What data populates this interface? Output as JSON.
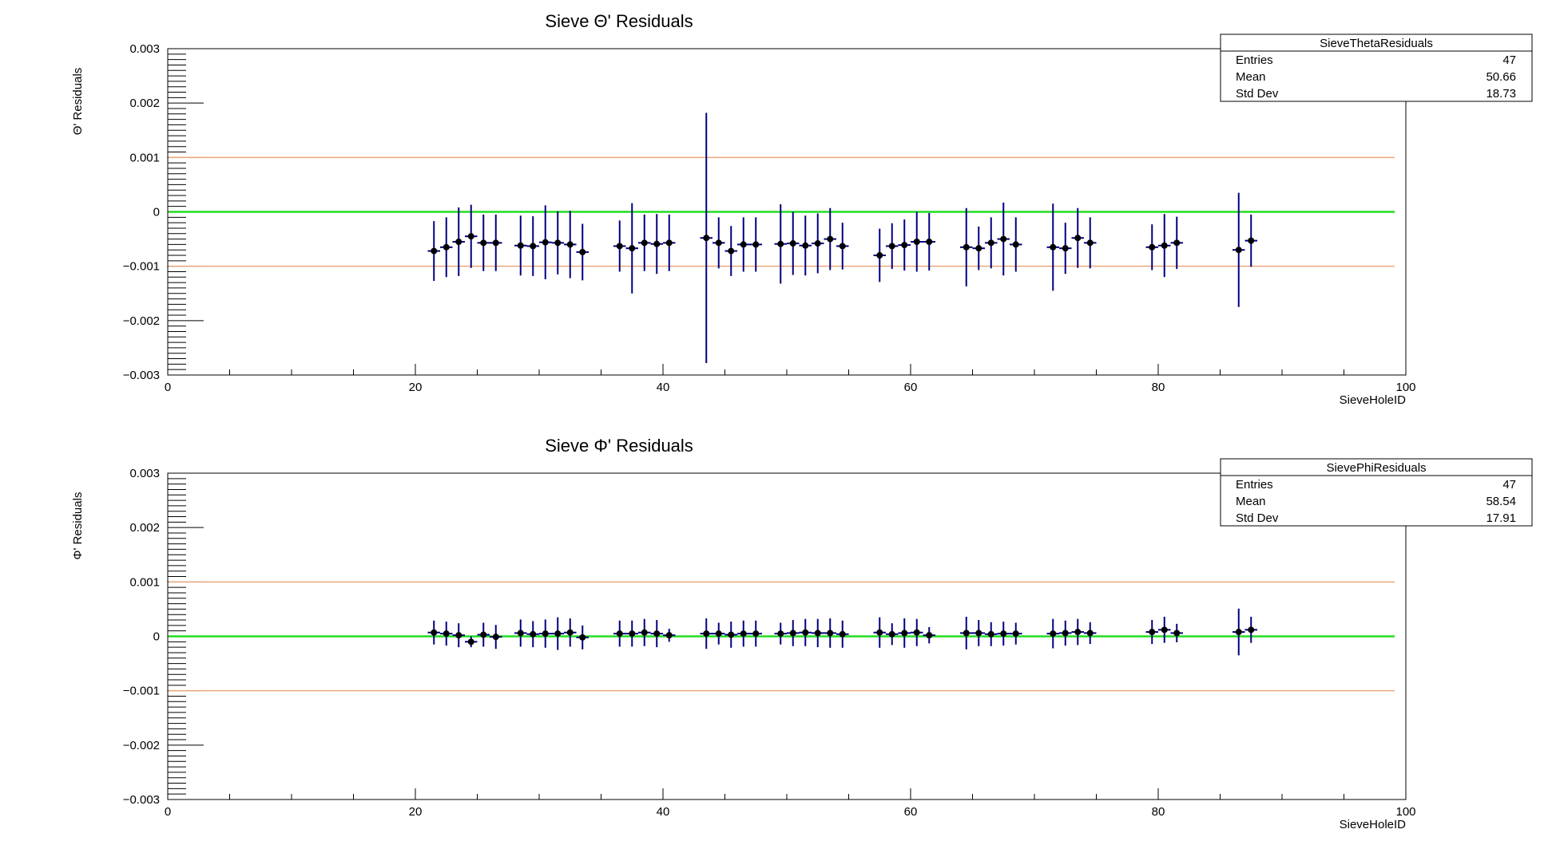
{
  "chart_data": [
    {
      "type": "scatter",
      "title": "Sieve Θ' Residuals",
      "xlabel": "SieveHoleID",
      "ylabel": "Θ' Residuals",
      "xlim": [
        0,
        100
      ],
      "ylim": [
        -0.003,
        0.003
      ],
      "x_tick_labels": [
        "0",
        "20",
        "40",
        "60",
        "80",
        "100"
      ],
      "y_tick_labels": [
        "−0.003",
        "−0.002",
        "−0.001",
        "0",
        "0.001",
        "0.002",
        "0.003"
      ],
      "reference_lines": [
        {
          "y": 0.001,
          "color": "#e8a87c"
        },
        {
          "y": 0,
          "color": "#22dd22"
        },
        {
          "y": -0.001,
          "color": "#e8a87c"
        }
      ],
      "marker_color": "#000000",
      "error_color": "#000080",
      "stats": {
        "name": "SieveThetaResiduals",
        "rows": [
          {
            "label": "Entries",
            "value": "47"
          },
          {
            "label": "Mean",
            "value": "50.66"
          },
          {
            "label": "Std Dev",
            "value": "18.73"
          }
        ]
      },
      "points": [
        {
          "x": 21.5,
          "y": -0.00072,
          "err": 0.00055
        },
        {
          "x": 22.5,
          "y": -0.00065,
          "err": 0.00055
        },
        {
          "x": 23.5,
          "y": -0.00055,
          "err": 0.00063
        },
        {
          "x": 24.5,
          "y": -0.00045,
          "err": 0.00058
        },
        {
          "x": 25.5,
          "y": -0.00057,
          "err": 0.00052
        },
        {
          "x": 26.5,
          "y": -0.00057,
          "err": 0.00052
        },
        {
          "x": 28.5,
          "y": -0.00062,
          "err": 0.00055
        },
        {
          "x": 29.5,
          "y": -0.00063,
          "err": 0.00055
        },
        {
          "x": 30.5,
          "y": -0.00056,
          "err": 0.00068
        },
        {
          "x": 31.5,
          "y": -0.00057,
          "err": 0.00058
        },
        {
          "x": 32.5,
          "y": -0.0006,
          "err": 0.00062
        },
        {
          "x": 33.5,
          "y": -0.00074,
          "err": 0.00052
        },
        {
          "x": 36.5,
          "y": -0.00063,
          "err": 0.00047
        },
        {
          "x": 37.5,
          "y": -0.00067,
          "err": 0.00083
        },
        {
          "x": 38.5,
          "y": -0.00057,
          "err": 0.00052
        },
        {
          "x": 39.5,
          "y": -0.00059,
          "err": 0.00055
        },
        {
          "x": 40.5,
          "y": -0.00057,
          "err": 0.00052
        },
        {
          "x": 43.5,
          "y": -0.00048,
          "err": 0.0023
        },
        {
          "x": 44.5,
          "y": -0.00057,
          "err": 0.00047
        },
        {
          "x": 45.5,
          "y": -0.00072,
          "err": 0.00046
        },
        {
          "x": 46.5,
          "y": -0.0006,
          "err": 0.0005
        },
        {
          "x": 47.5,
          "y": -0.0006,
          "err": 0.0005
        },
        {
          "x": 49.5,
          "y": -0.00059,
          "err": 0.00073
        },
        {
          "x": 50.5,
          "y": -0.00058,
          "err": 0.00058
        },
        {
          "x": 51.5,
          "y": -0.00062,
          "err": 0.00055
        },
        {
          "x": 52.5,
          "y": -0.00058,
          "err": 0.00055
        },
        {
          "x": 53.5,
          "y": -0.0005,
          "err": 0.00057
        },
        {
          "x": 54.5,
          "y": -0.00063,
          "err": 0.00043
        },
        {
          "x": 57.5,
          "y": -0.0008,
          "err": 0.00049
        },
        {
          "x": 58.5,
          "y": -0.00063,
          "err": 0.00042
        },
        {
          "x": 59.5,
          "y": -0.00061,
          "err": 0.00047
        },
        {
          "x": 60.5,
          "y": -0.00055,
          "err": 0.00055
        },
        {
          "x": 61.5,
          "y": -0.00055,
          "err": 0.00053
        },
        {
          "x": 64.5,
          "y": -0.00065,
          "err": 0.00072
        },
        {
          "x": 65.5,
          "y": -0.00067,
          "err": 0.0004
        },
        {
          "x": 66.5,
          "y": -0.00057,
          "err": 0.00047
        },
        {
          "x": 67.5,
          "y": -0.0005,
          "err": 0.00067
        },
        {
          "x": 68.5,
          "y": -0.0006,
          "err": 0.0005
        },
        {
          "x": 71.5,
          "y": -0.00065,
          "err": 0.0008
        },
        {
          "x": 72.5,
          "y": -0.00067,
          "err": 0.00047
        },
        {
          "x": 73.5,
          "y": -0.00048,
          "err": 0.00055
        },
        {
          "x": 74.5,
          "y": -0.00057,
          "err": 0.00047
        },
        {
          "x": 79.5,
          "y": -0.00065,
          "err": 0.00042
        },
        {
          "x": 80.5,
          "y": -0.00062,
          "err": 0.00058
        },
        {
          "x": 81.5,
          "y": -0.00057,
          "err": 0.00048
        },
        {
          "x": 86.5,
          "y": -0.0007,
          "err": 0.00105
        },
        {
          "x": 87.5,
          "y": -0.00053,
          "err": 0.00048
        }
      ]
    },
    {
      "type": "scatter",
      "title": "Sieve Φ' Residuals",
      "xlabel": "SieveHoleID",
      "ylabel": "Φ' Residuals",
      "xlim": [
        0,
        100
      ],
      "ylim": [
        -0.003,
        0.003
      ],
      "x_tick_labels": [
        "0",
        "20",
        "40",
        "60",
        "80",
        "100"
      ],
      "y_tick_labels": [
        "−0.003",
        "−0.002",
        "−0.001",
        "0",
        "0.001",
        "0.002",
        "0.003"
      ],
      "reference_lines": [
        {
          "y": 0.001,
          "color": "#e8a87c"
        },
        {
          "y": 0,
          "color": "#22dd22"
        },
        {
          "y": -0.001,
          "color": "#e8a87c"
        }
      ],
      "marker_color": "#000000",
      "error_color": "#000080",
      "stats": {
        "name": "SievePhiResiduals",
        "rows": [
          {
            "label": "Entries",
            "value": "47"
          },
          {
            "label": "Mean",
            "value": "58.54"
          },
          {
            "label": "Std Dev",
            "value": "17.91"
          }
        ]
      },
      "points": [
        {
          "x": 21.5,
          "y": 7e-05,
          "err": 0.00022
        },
        {
          "x": 22.5,
          "y": 5e-05,
          "err": 0.00022
        },
        {
          "x": 23.5,
          "y": 2e-05,
          "err": 0.00022
        },
        {
          "x": 24.5,
          "y": -0.0001,
          "err": 0.0001
        },
        {
          "x": 25.5,
          "y": 3e-05,
          "err": 0.00022
        },
        {
          "x": 26.5,
          "y": -1e-05,
          "err": 0.00022
        },
        {
          "x": 28.5,
          "y": 6e-05,
          "err": 0.00025
        },
        {
          "x": 29.5,
          "y": 4e-05,
          "err": 0.00024
        },
        {
          "x": 30.5,
          "y": 5e-05,
          "err": 0.00026
        },
        {
          "x": 31.5,
          "y": 5e-05,
          "err": 0.0003
        },
        {
          "x": 32.5,
          "y": 7e-05,
          "err": 0.00026
        },
        {
          "x": 33.5,
          "y": -2e-05,
          "err": 0.00022
        },
        {
          "x": 36.5,
          "y": 5e-05,
          "err": 0.00024
        },
        {
          "x": 37.5,
          "y": 5e-05,
          "err": 0.00024
        },
        {
          "x": 38.5,
          "y": 7e-05,
          "err": 0.00025
        },
        {
          "x": 39.5,
          "y": 5e-05,
          "err": 0.00025
        },
        {
          "x": 40.5,
          "y": 2e-05,
          "err": 0.00012
        },
        {
          "x": 43.5,
          "y": 5e-05,
          "err": 0.00028
        },
        {
          "x": 44.5,
          "y": 5e-05,
          "err": 0.0002
        },
        {
          "x": 45.5,
          "y": 3e-05,
          "err": 0.00024
        },
        {
          "x": 46.5,
          "y": 5e-05,
          "err": 0.00024
        },
        {
          "x": 47.5,
          "y": 5e-05,
          "err": 0.00024
        },
        {
          "x": 49.5,
          "y": 5e-05,
          "err": 0.0002
        },
        {
          "x": 50.5,
          "y": 6e-05,
          "err": 0.00024
        },
        {
          "x": 51.5,
          "y": 7e-05,
          "err": 0.00025
        },
        {
          "x": 52.5,
          "y": 6e-05,
          "err": 0.00026
        },
        {
          "x": 53.5,
          "y": 6e-05,
          "err": 0.00027
        },
        {
          "x": 54.5,
          "y": 4e-05,
          "err": 0.00025
        },
        {
          "x": 57.5,
          "y": 7e-05,
          "err": 0.00028
        },
        {
          "x": 58.5,
          "y": 4e-05,
          "err": 0.0002
        },
        {
          "x": 59.5,
          "y": 6e-05,
          "err": 0.00027
        },
        {
          "x": 60.5,
          "y": 7e-05,
          "err": 0.00025
        },
        {
          "x": 61.5,
          "y": 2e-05,
          "err": 0.00015
        },
        {
          "x": 64.5,
          "y": 6e-05,
          "err": 0.0003
        },
        {
          "x": 65.5,
          "y": 6e-05,
          "err": 0.00024
        },
        {
          "x": 66.5,
          "y": 4e-05,
          "err": 0.00022
        },
        {
          "x": 67.5,
          "y": 5e-05,
          "err": 0.00022
        },
        {
          "x": 68.5,
          "y": 5e-05,
          "err": 0.0002
        },
        {
          "x": 71.5,
          "y": 5e-05,
          "err": 0.00027
        },
        {
          "x": 72.5,
          "y": 6e-05,
          "err": 0.00023
        },
        {
          "x": 73.5,
          "y": 8e-05,
          "err": 0.00024
        },
        {
          "x": 74.5,
          "y": 6e-05,
          "err": 0.0002
        },
        {
          "x": 79.5,
          "y": 8e-05,
          "err": 0.00022
        },
        {
          "x": 80.5,
          "y": 0.00012,
          "err": 0.00024
        },
        {
          "x": 81.5,
          "y": 6e-05,
          "err": 0.00017
        },
        {
          "x": 86.5,
          "y": 8e-05,
          "err": 0.00043
        },
        {
          "x": 87.5,
          "y": 0.00012,
          "err": 0.00024
        }
      ]
    }
  ]
}
